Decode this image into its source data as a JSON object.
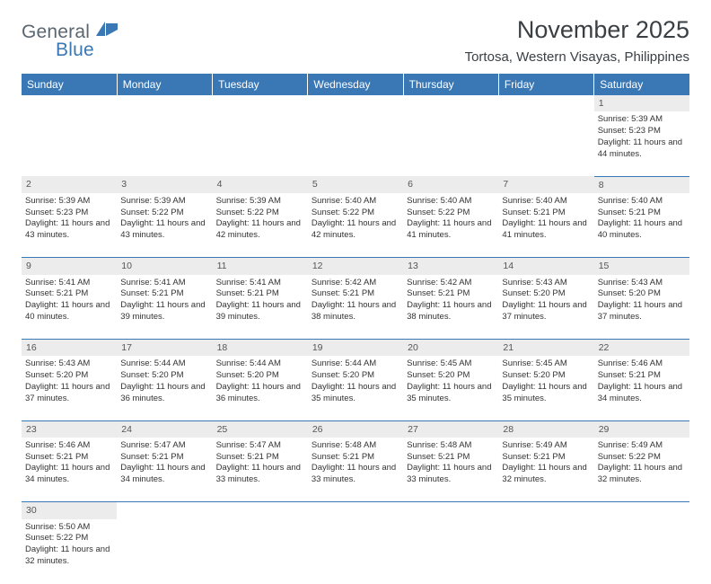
{
  "logo": {
    "text1": "General",
    "text2": "Blue",
    "color1": "#5a6670",
    "color2": "#3a78b5"
  },
  "title": "November 2025",
  "subtitle": "Tortosa, Western Visayas, Philippines",
  "colors": {
    "header_bg": "#3a78b5",
    "header_text": "#ffffff",
    "daynum_bg": "#ececec",
    "border": "#3a78b5",
    "body_text": "#333333"
  },
  "fonts": {
    "title_size": 27,
    "subtitle_size": 15,
    "header_size": 12,
    "cell_size": 9.5,
    "daynum_size": 10.5
  },
  "weekdays": [
    "Sunday",
    "Monday",
    "Tuesday",
    "Wednesday",
    "Thursday",
    "Friday",
    "Saturday"
  ],
  "weeks": [
    {
      "nums": [
        "",
        "",
        "",
        "",
        "",
        "",
        "1"
      ],
      "cells": [
        null,
        null,
        null,
        null,
        null,
        null,
        {
          "sr": "5:39 AM",
          "ss": "5:23 PM",
          "dl": "11 hours and 44 minutes."
        }
      ]
    },
    {
      "nums": [
        "2",
        "3",
        "4",
        "5",
        "6",
        "7",
        "8"
      ],
      "cells": [
        {
          "sr": "5:39 AM",
          "ss": "5:23 PM",
          "dl": "11 hours and 43 minutes."
        },
        {
          "sr": "5:39 AM",
          "ss": "5:22 PM",
          "dl": "11 hours and 43 minutes."
        },
        {
          "sr": "5:39 AM",
          "ss": "5:22 PM",
          "dl": "11 hours and 42 minutes."
        },
        {
          "sr": "5:40 AM",
          "ss": "5:22 PM",
          "dl": "11 hours and 42 minutes."
        },
        {
          "sr": "5:40 AM",
          "ss": "5:22 PM",
          "dl": "11 hours and 41 minutes."
        },
        {
          "sr": "5:40 AM",
          "ss": "5:21 PM",
          "dl": "11 hours and 41 minutes."
        },
        {
          "sr": "5:40 AM",
          "ss": "5:21 PM",
          "dl": "11 hours and 40 minutes."
        }
      ]
    },
    {
      "nums": [
        "9",
        "10",
        "11",
        "12",
        "13",
        "14",
        "15"
      ],
      "cells": [
        {
          "sr": "5:41 AM",
          "ss": "5:21 PM",
          "dl": "11 hours and 40 minutes."
        },
        {
          "sr": "5:41 AM",
          "ss": "5:21 PM",
          "dl": "11 hours and 39 minutes."
        },
        {
          "sr": "5:41 AM",
          "ss": "5:21 PM",
          "dl": "11 hours and 39 minutes."
        },
        {
          "sr": "5:42 AM",
          "ss": "5:21 PM",
          "dl": "11 hours and 38 minutes."
        },
        {
          "sr": "5:42 AM",
          "ss": "5:21 PM",
          "dl": "11 hours and 38 minutes."
        },
        {
          "sr": "5:43 AM",
          "ss": "5:20 PM",
          "dl": "11 hours and 37 minutes."
        },
        {
          "sr": "5:43 AM",
          "ss": "5:20 PM",
          "dl": "11 hours and 37 minutes."
        }
      ]
    },
    {
      "nums": [
        "16",
        "17",
        "18",
        "19",
        "20",
        "21",
        "22"
      ],
      "cells": [
        {
          "sr": "5:43 AM",
          "ss": "5:20 PM",
          "dl": "11 hours and 37 minutes."
        },
        {
          "sr": "5:44 AM",
          "ss": "5:20 PM",
          "dl": "11 hours and 36 minutes."
        },
        {
          "sr": "5:44 AM",
          "ss": "5:20 PM",
          "dl": "11 hours and 36 minutes."
        },
        {
          "sr": "5:44 AM",
          "ss": "5:20 PM",
          "dl": "11 hours and 35 minutes."
        },
        {
          "sr": "5:45 AM",
          "ss": "5:20 PM",
          "dl": "11 hours and 35 minutes."
        },
        {
          "sr": "5:45 AM",
          "ss": "5:20 PM",
          "dl": "11 hours and 35 minutes."
        },
        {
          "sr": "5:46 AM",
          "ss": "5:21 PM",
          "dl": "11 hours and 34 minutes."
        }
      ]
    },
    {
      "nums": [
        "23",
        "24",
        "25",
        "26",
        "27",
        "28",
        "29"
      ],
      "cells": [
        {
          "sr": "5:46 AM",
          "ss": "5:21 PM",
          "dl": "11 hours and 34 minutes."
        },
        {
          "sr": "5:47 AM",
          "ss": "5:21 PM",
          "dl": "11 hours and 34 minutes."
        },
        {
          "sr": "5:47 AM",
          "ss": "5:21 PM",
          "dl": "11 hours and 33 minutes."
        },
        {
          "sr": "5:48 AM",
          "ss": "5:21 PM",
          "dl": "11 hours and 33 minutes."
        },
        {
          "sr": "5:48 AM",
          "ss": "5:21 PM",
          "dl": "11 hours and 33 minutes."
        },
        {
          "sr": "5:49 AM",
          "ss": "5:21 PM",
          "dl": "11 hours and 32 minutes."
        },
        {
          "sr": "5:49 AM",
          "ss": "5:22 PM",
          "dl": "11 hours and 32 minutes."
        }
      ]
    },
    {
      "nums": [
        "30",
        "",
        "",
        "",
        "",
        "",
        ""
      ],
      "cells": [
        {
          "sr": "5:50 AM",
          "ss": "5:22 PM",
          "dl": "11 hours and 32 minutes."
        },
        null,
        null,
        null,
        null,
        null,
        null
      ]
    }
  ],
  "labels": {
    "sunrise": "Sunrise: ",
    "sunset": "Sunset: ",
    "daylight": "Daylight: "
  }
}
